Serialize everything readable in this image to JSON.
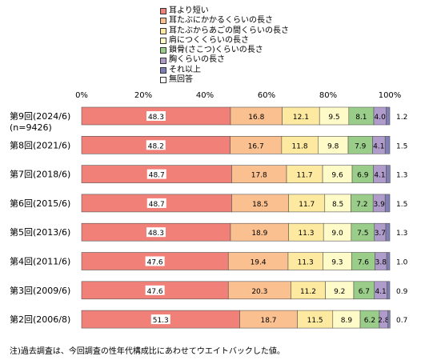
{
  "chart_data": {
    "type": "bar",
    "stacked": true,
    "orientation": "horizontal",
    "percent_scale": true,
    "xlim": [
      0,
      100
    ],
    "x_ticks": [
      "0%",
      "20%",
      "40%",
      "60%",
      "80%",
      "100%"
    ],
    "categories": [
      "第9回(2024/6)",
      "第8回(2021/6)",
      "第7回(2018/6)",
      "第6回(2015/6)",
      "第5回(2013/6)",
      "第4回(2011/6)",
      "第3回(2009/6)",
      "第2回(2006/8)"
    ],
    "category_note": "(n=9426)",
    "series": [
      {
        "name": "耳より短い",
        "color": "#F08078",
        "values": [
          48.3,
          48.2,
          48.7,
          48.7,
          48.3,
          47.6,
          47.6,
          51.3
        ]
      },
      {
        "name": "耳たぶにかかるくらいの長さ",
        "color": "#FAC090",
        "values": [
          16.8,
          16.7,
          17.8,
          18.5,
          18.9,
          19.4,
          20.3,
          18.7
        ]
      },
      {
        "name": "耳たぶからあごの間くらいの長さ",
        "color": "#FDE9A0",
        "values": [
          12.1,
          11.8,
          11.7,
          11.7,
          11.3,
          11.3,
          11.2,
          11.5
        ]
      },
      {
        "name": "肩につくくらいの長さ",
        "color": "#FFFBC8",
        "values": [
          9.5,
          9.8,
          9.6,
          8.5,
          9.0,
          9.3,
          9.2,
          8.9
        ]
      },
      {
        "name": "鎖骨(さこつ)くらいの長さ",
        "color": "#9ACD8A",
        "values": [
          8.1,
          7.9,
          6.9,
          7.2,
          7.5,
          7.6,
          6.7,
          6.2
        ]
      },
      {
        "name": "胸くらいの長さ",
        "color": "#B09CCB",
        "values": [
          4.0,
          4.1,
          4.1,
          3.9,
          3.7,
          3.8,
          4.1,
          2.8
        ]
      },
      {
        "name": "それ以上",
        "color": "#7F7FB5",
        "values": [
          1.2,
          1.5,
          1.3,
          1.5,
          1.3,
          1.0,
          0.9,
          0.7
        ]
      },
      {
        "name": "無回答",
        "color": "#FFFFFF",
        "values": [
          0,
          0,
          0,
          0,
          0,
          0,
          0,
          0
        ]
      }
    ],
    "outside_labels": [
      "1.2",
      "1.5",
      "1.3",
      "1.5",
      "1.3",
      "1.0",
      "0.9",
      "0.7"
    ],
    "grid": false,
    "legend_position": "top"
  },
  "note": "注)過去調査は、今回調査の性年代構成比にあわせてウエイトバックした値。"
}
